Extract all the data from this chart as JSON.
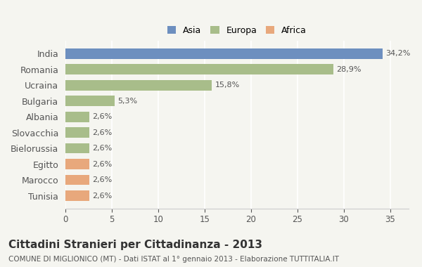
{
  "categories": [
    "India",
    "Romania",
    "Ucraina",
    "Bulgaria",
    "Albania",
    "Slovacchia",
    "Bielorussia",
    "Egitto",
    "Marocco",
    "Tunisia"
  ],
  "values": [
    34.2,
    28.9,
    15.8,
    5.3,
    2.6,
    2.6,
    2.6,
    2.6,
    2.6,
    2.6
  ],
  "labels": [
    "34,2%",
    "28,9%",
    "15,8%",
    "5,3%",
    "2,6%",
    "2,6%",
    "2,6%",
    "2,6%",
    "2,6%",
    "2,6%"
  ],
  "colors": [
    "#6d8fbf",
    "#a8bd8a",
    "#a8bd8a",
    "#a8bd8a",
    "#a8bd8a",
    "#a8bd8a",
    "#a8bd8a",
    "#e8a87c",
    "#e8a87c",
    "#e8a87c"
  ],
  "legend_labels": [
    "Asia",
    "Europa",
    "Africa"
  ],
  "legend_colors": [
    "#6d8fbf",
    "#a8bd8a",
    "#e8a87c"
  ],
  "xlim": [
    0,
    37
  ],
  "xticks": [
    0,
    5,
    10,
    15,
    20,
    25,
    30,
    35
  ],
  "title": "Cittadini Stranieri per Cittadinanza - 2013",
  "subtitle": "COMUNE DI MIGLIONICO (MT) - Dati ISTAT al 1° gennaio 2013 - Elaborazione TUTTITALIA.IT",
  "background_color": "#f5f5f0",
  "bar_height": 0.65
}
